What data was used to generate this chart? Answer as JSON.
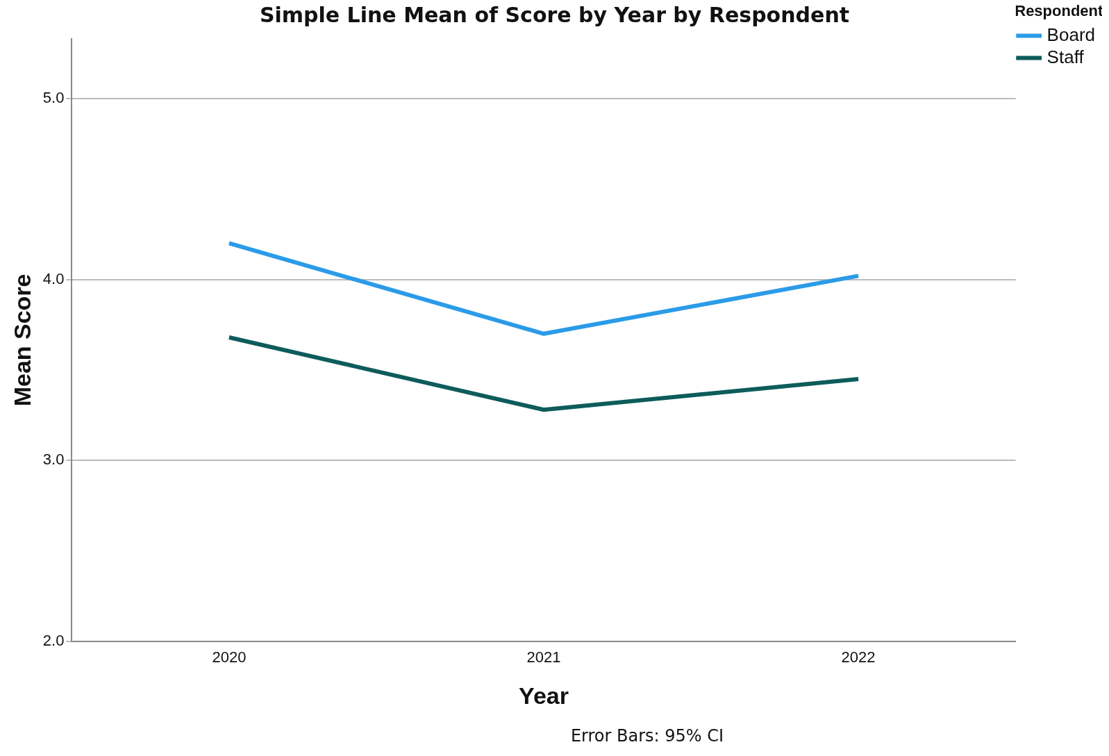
{
  "chart_data": {
    "type": "line",
    "title": "Simple Line Mean of Score by Year by Respondent",
    "xlabel": "Year",
    "ylabel": "Mean Score",
    "legend_title": "Respondent",
    "annotations": [
      "Error Bars: 95% CI"
    ],
    "categories": [
      "2020",
      "2021",
      "2022"
    ],
    "series": [
      {
        "name": "Board",
        "color": "#2b9be8",
        "values": [
          4.2,
          3.7,
          4.02
        ]
      },
      {
        "name": "Staff",
        "color": "#0d5c5b",
        "values": [
          3.68,
          3.28,
          3.45
        ]
      }
    ],
    "ylim": [
      2,
      5.33
    ],
    "yticks": [
      {
        "value": 2,
        "label": "2.0"
      },
      {
        "value": 3,
        "label": "3.0"
      },
      {
        "value": 4,
        "label": "4.0"
      },
      {
        "value": 5,
        "label": "5.0"
      }
    ],
    "grid": "y",
    "legend": "top right",
    "marker": "none",
    "line_style": "solid"
  }
}
